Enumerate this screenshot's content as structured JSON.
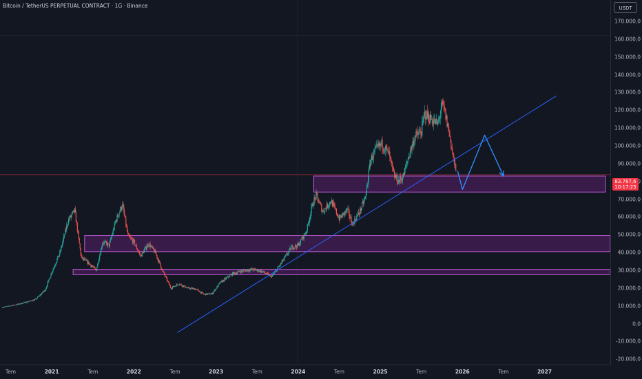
{
  "header": {
    "title": "Bitcoin / TetherUS PERPETUAL CONTRACT · 1G · Binance",
    "currency_button": "USDT"
  },
  "price_tag": {
    "price": "83.787,6",
    "countdown": "10:17:25",
    "color": "#f23645"
  },
  "colors": {
    "background": "#131722",
    "up": "#26a69a",
    "down": "#ef5350",
    "trendline": "#2962ff",
    "projection": "#2f8cf5",
    "zone_fill": "#9c27b0",
    "zone_border": "#c05cd8",
    "price_line": "#f23645"
  },
  "chart_data": {
    "type": "candlestick",
    "title": "Bitcoin / TetherUS PERPETUAL CONTRACT · 1G · Binance",
    "y_tick_labels": [
      "-20.000,0",
      "-10.000,0",
      "0,0",
      "10.000,0",
      "20.000,0",
      "30.000,0",
      "40.000,0",
      "50.000,0",
      "60.000,0",
      "70.000,0",
      "80.000,0",
      "90.000,0",
      "100.000,0",
      "110.000,0",
      "120.000,0",
      "130.000,0",
      "140.000,0",
      "150.000,0",
      "160.000,0",
      "170.000,0"
    ],
    "y_tick_values": [
      -20000,
      -10000,
      0,
      10000,
      20000,
      30000,
      40000,
      50000,
      60000,
      70000,
      80000,
      90000,
      100000,
      110000,
      120000,
      130000,
      140000,
      150000,
      160000,
      170000
    ],
    "ylim": [
      -23000,
      182000
    ],
    "x_ticks": [
      {
        "label": "Tem",
        "t": 2020.5,
        "year": false
      },
      {
        "label": "2021",
        "t": 2021.0,
        "year": true
      },
      {
        "label": "Tem",
        "t": 2021.5,
        "year": false
      },
      {
        "label": "2022",
        "t": 2022.0,
        "year": true
      },
      {
        "label": "Tem",
        "t": 2022.5,
        "year": false
      },
      {
        "label": "2023",
        "t": 2023.0,
        "year": true
      },
      {
        "label": "Tem",
        "t": 2023.5,
        "year": false
      },
      {
        "label": "2024",
        "t": 2024.0,
        "year": true
      },
      {
        "label": "Tem",
        "t": 2024.5,
        "year": false
      },
      {
        "label": "2025",
        "t": 2025.0,
        "year": true
      },
      {
        "label": "Tem",
        "t": 2025.5,
        "year": false
      },
      {
        "label": "2026",
        "t": 2026.0,
        "year": true
      },
      {
        "label": "Tem",
        "t": 2026.5,
        "year": false
      },
      {
        "label": "2027",
        "t": 2027.0,
        "year": true
      }
    ],
    "xlim": [
      2020.37,
      2027.8
    ],
    "price_anchors": [
      [
        2020.4,
        9200
      ],
      [
        2020.6,
        11000
      ],
      [
        2020.8,
        13500
      ],
      [
        2020.92,
        19000
      ],
      [
        2021.0,
        29000
      ],
      [
        2021.1,
        40000
      ],
      [
        2021.2,
        58000
      ],
      [
        2021.28,
        63500
      ],
      [
        2021.36,
        37000
      ],
      [
        2021.45,
        34000
      ],
      [
        2021.54,
        30000
      ],
      [
        2021.62,
        46000
      ],
      [
        2021.7,
        44000
      ],
      [
        2021.78,
        58000
      ],
      [
        2021.86,
        67000
      ],
      [
        2021.93,
        49000
      ],
      [
        2022.0,
        46000
      ],
      [
        2022.08,
        38000
      ],
      [
        2022.18,
        45000
      ],
      [
        2022.26,
        40000
      ],
      [
        2022.35,
        29500
      ],
      [
        2022.45,
        20000
      ],
      [
        2022.55,
        22500
      ],
      [
        2022.65,
        20000
      ],
      [
        2022.75,
        19500
      ],
      [
        2022.85,
        16500
      ],
      [
        2022.95,
        16800
      ],
      [
        2023.05,
        23000
      ],
      [
        2023.2,
        28000
      ],
      [
        2023.3,
        29500
      ],
      [
        2023.45,
        30500
      ],
      [
        2023.55,
        29500
      ],
      [
        2023.68,
        26500
      ],
      [
        2023.8,
        34500
      ],
      [
        2023.92,
        43000
      ],
      [
        2024.0,
        44000
      ],
      [
        2024.1,
        52000
      ],
      [
        2024.18,
        68000
      ],
      [
        2024.22,
        72000
      ],
      [
        2024.3,
        63000
      ],
      [
        2024.4,
        69000
      ],
      [
        2024.5,
        59000
      ],
      [
        2024.6,
        64000
      ],
      [
        2024.66,
        56000
      ],
      [
        2024.75,
        63000
      ],
      [
        2024.82,
        71000
      ],
      [
        2024.88,
        92000
      ],
      [
        2024.95,
        98000
      ],
      [
        2025.02,
        101000
      ],
      [
        2025.1,
        96000
      ],
      [
        2025.16,
        84000
      ],
      [
        2025.22,
        80000
      ],
      [
        2025.28,
        83000
      ],
      [
        2025.35,
        95000
      ],
      [
        2025.42,
        105000
      ],
      [
        2025.5,
        108000
      ],
      [
        2025.54,
        118000
      ],
      [
        2025.62,
        115000
      ],
      [
        2025.7,
        112000
      ],
      [
        2025.75,
        123000
      ],
      [
        2025.78,
        120000
      ],
      [
        2025.84,
        107000
      ],
      [
        2025.88,
        96000
      ],
      [
        2025.92,
        85000
      ]
    ],
    "zones": [
      {
        "t0": 2024.19,
        "t1": 2027.74,
        "y0": 74000,
        "y1": 83000
      },
      {
        "t0": 2021.4,
        "t1": 2028.0,
        "y0": 40500,
        "y1": 49500
      },
      {
        "t0": 2021.26,
        "t1": 2028.0,
        "y0": 27500,
        "y1": 30500
      }
    ],
    "trendline": {
      "t0": 2022.53,
      "y0": -5000,
      "t1": 2027.14,
      "y1": 128000
    },
    "projection_path": [
      [
        2025.94,
        86000
      ],
      [
        2026.0,
        75500
      ],
      [
        2026.27,
        106000
      ],
      [
        2026.5,
        83000
      ]
    ],
    "current_price": 83787.6,
    "grid_hline": 162000,
    "grid_vline": 2023.99
  }
}
